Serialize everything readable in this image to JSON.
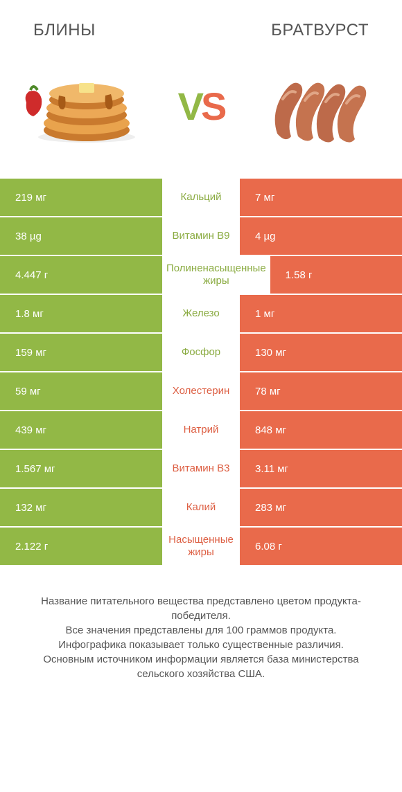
{
  "left_name": "БЛИНЫ",
  "right_name": "БРАТВУРСТ",
  "vs_label": "VS",
  "colors": {
    "left": "#92b846",
    "right": "#e96a4b",
    "left_text": "#8aab41",
    "right_text": "#dd5f43",
    "footer_text": "#555555"
  },
  "rows": [
    {
      "label": "Кальций",
      "left_val": "219 мг",
      "right_val": "7 мг",
      "winner": "left"
    },
    {
      "label": "Витамин B9",
      "left_val": "38 µg",
      "right_val": "4 µg",
      "winner": "left"
    },
    {
      "label": "Полиненасыщенные жиры",
      "left_val": "4.447 г",
      "right_val": "1.58 г",
      "winner": "left"
    },
    {
      "label": "Железо",
      "left_val": "1.8 мг",
      "right_val": "1 мг",
      "winner": "left"
    },
    {
      "label": "Фосфор",
      "left_val": "159 мг",
      "right_val": "130 мг",
      "winner": "left"
    },
    {
      "label": "Холестерин",
      "left_val": "59 мг",
      "right_val": "78 мг",
      "winner": "right"
    },
    {
      "label": "Натрий",
      "left_val": "439 мг",
      "right_val": "848 мг",
      "winner": "right"
    },
    {
      "label": "Витамин B3",
      "left_val": "1.567 мг",
      "right_val": "3.11 мг",
      "winner": "right"
    },
    {
      "label": "Калий",
      "left_val": "132 мг",
      "right_val": "283 мг",
      "winner": "right"
    },
    {
      "label": "Насыщенные жиры",
      "left_val": "2.122 г",
      "right_val": "6.08 г",
      "winner": "right"
    }
  ],
  "footer_lines": [
    "Название питательного вещества представлено цветом продукта-победителя.",
    "Все значения представлены для 100 граммов продукта.",
    "Инфографика показывает только существенные различия.",
    "Основным источником информации является база министерства сельского хозяйства США."
  ]
}
